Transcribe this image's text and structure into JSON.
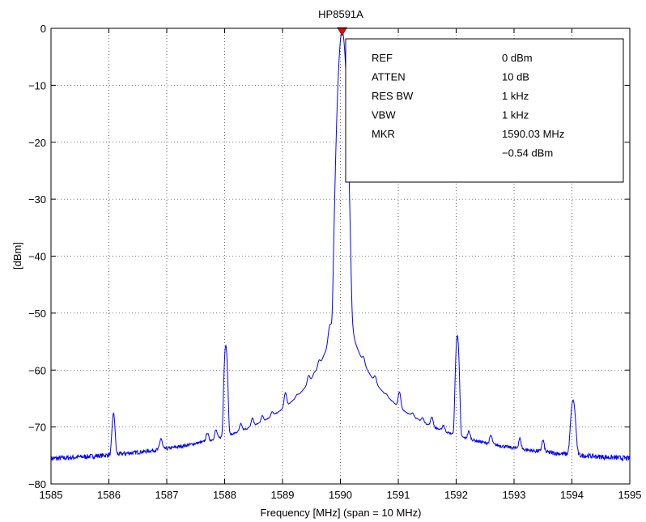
{
  "chart_data": {
    "type": "line",
    "title": "HP8591A",
    "xlabel": "Frequency [MHz] (span = 10 MHz)",
    "ylabel": "[dBm]",
    "xlim": [
      1585,
      1595
    ],
    "ylim": [
      -80,
      0
    ],
    "x_ticks": [
      "1585",
      "1586",
      "1587",
      "1588",
      "1589",
      "1590",
      "1591",
      "1592",
      "1593",
      "1594",
      "1595"
    ],
    "y_ticks": [
      "0",
      "−10",
      "−20",
      "−30",
      "−40",
      "−50",
      "−60",
      "−70",
      "−80"
    ],
    "grid": true,
    "line_color": "#0000ff",
    "marker_color": "#ff0000",
    "marker": {
      "x": 1590.03,
      "y": -0.54
    },
    "noise_floor": -77,
    "peaks": [
      {
        "x": 1586.08,
        "y": -68.5,
        "w": 0.02
      },
      {
        "x": 1587.85,
        "y": -75.8,
        "w": 0.02
      },
      {
        "x": 1588.02,
        "y": -55.8,
        "w": 0.02
      },
      {
        "x": 1588.28,
        "y": -75.5,
        "w": 0.02
      },
      {
        "x": 1588.48,
        "y": -74.0,
        "w": 0.02
      },
      {
        "x": 1588.65,
        "y": -74.8,
        "w": 0.02
      },
      {
        "x": 1588.82,
        "y": -75.6,
        "w": 0.02
      },
      {
        "x": 1589.05,
        "y": -67.6,
        "w": 0.02
      },
      {
        "x": 1589.25,
        "y": -75.2,
        "w": 0.02
      },
      {
        "x": 1589.45,
        "y": -66.8,
        "w": 0.02
      },
      {
        "x": 1589.55,
        "y": -71.5,
        "w": 0.02
      },
      {
        "x": 1589.63,
        "y": -65.0,
        "w": 0.02
      },
      {
        "x": 1589.72,
        "y": -73.8,
        "w": 0.02
      },
      {
        "x": 1589.82,
        "y": -55.5,
        "w": 0.025
      },
      {
        "x": 1589.92,
        "y": -58.0,
        "w": 0.025
      },
      {
        "x": 1590.03,
        "y": -0.54,
        "w": 0.035
      },
      {
        "x": 1590.12,
        "y": -60.5,
        "w": 0.025
      },
      {
        "x": 1590.2,
        "y": -58.0,
        "w": 0.02
      },
      {
        "x": 1590.4,
        "y": -64.5,
        "w": 0.02
      },
      {
        "x": 1590.6,
        "y": -67.5,
        "w": 0.02
      },
      {
        "x": 1590.8,
        "y": -76.0,
        "w": 0.02
      },
      {
        "x": 1591.02,
        "y": -67.2,
        "w": 0.02
      },
      {
        "x": 1591.25,
        "y": -76.2,
        "w": 0.02
      },
      {
        "x": 1591.42,
        "y": -76.5,
        "w": 0.02
      },
      {
        "x": 1591.58,
        "y": -73.2,
        "w": 0.02
      },
      {
        "x": 1591.78,
        "y": -76.4,
        "w": 0.02
      },
      {
        "x": 1592.02,
        "y": -54.0,
        "w": 0.02
      },
      {
        "x": 1592.22,
        "y": -76.5,
        "w": 0.02
      },
      {
        "x": 1592.6,
        "y": -76.8,
        "w": 0.02
      },
      {
        "x": 1593.1,
        "y": -76.6,
        "w": 0.02
      },
      {
        "x": 1593.5,
        "y": -76.7,
        "w": 0.02
      },
      {
        "x": 1594.02,
        "y": -65.8,
        "w": 0.03
      },
      {
        "x": 1586.9,
        "y": -76.5,
        "w": 0.02
      },
      {
        "x": 1587.7,
        "y": -76.6,
        "w": 0.02
      }
    ]
  },
  "info_box": {
    "rows": [
      {
        "label": "REF",
        "value": "0 dBm"
      },
      {
        "label": "ATTEN",
        "value": "10 dB"
      },
      {
        "label": "RES BW",
        "value": "1 kHz"
      },
      {
        "label": "VBW",
        "value": "1 kHz"
      },
      {
        "label": "MKR",
        "value": "1590.03 MHz"
      },
      {
        "label": "",
        "value": "−0.54 dBm"
      }
    ]
  }
}
